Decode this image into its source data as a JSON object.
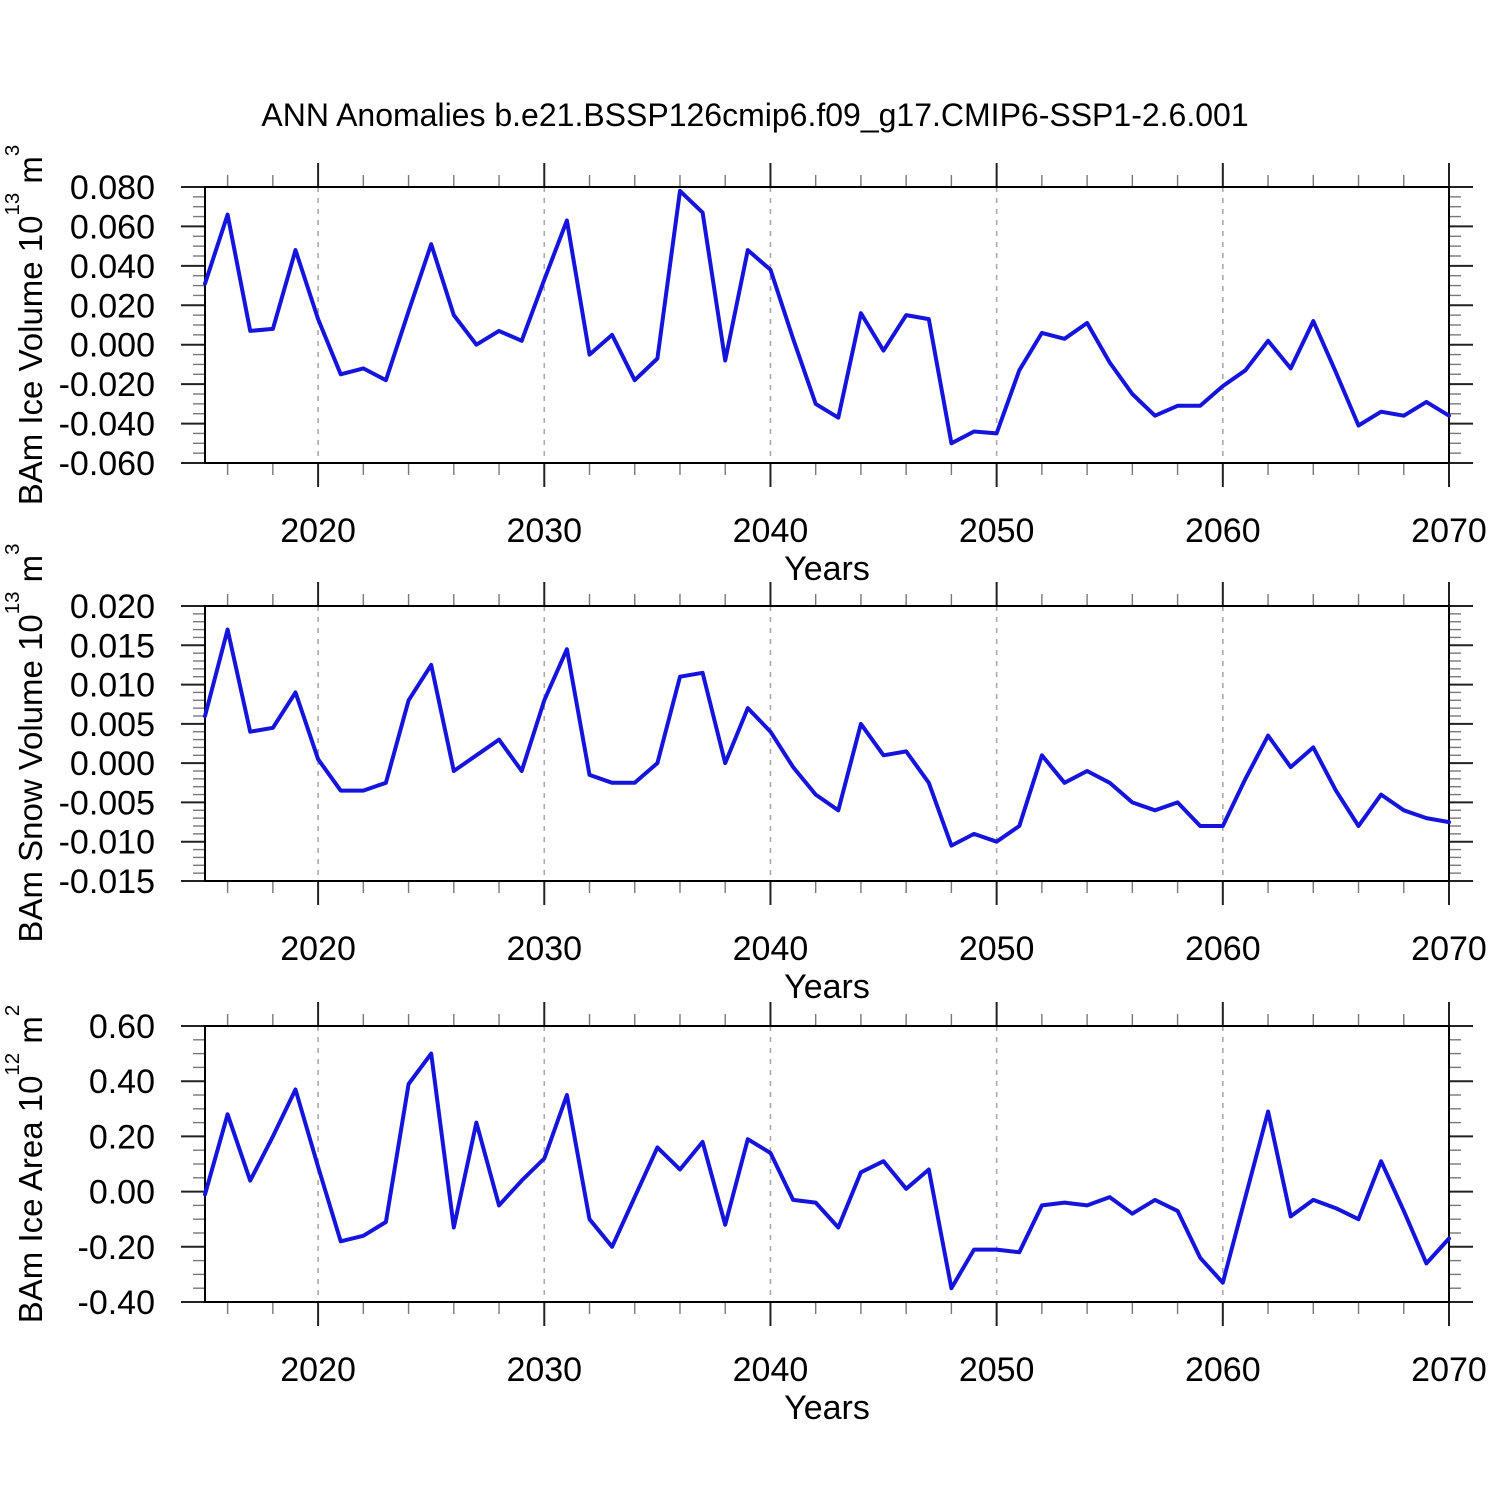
{
  "title": "ANN Anomalies b.e21.BSSP126cmip6.f09_g17.CMIP6-SSP1-2.6.001",
  "xlabel": "Years",
  "line_color": "#1414dd",
  "grid_color": "#aaaaaa",
  "years": [
    2015,
    2016,
    2017,
    2018,
    2019,
    2020,
    2021,
    2022,
    2023,
    2024,
    2025,
    2026,
    2027,
    2028,
    2029,
    2030,
    2031,
    2032,
    2033,
    2034,
    2035,
    2036,
    2037,
    2038,
    2039,
    2040,
    2041,
    2042,
    2043,
    2044,
    2045,
    2046,
    2047,
    2048,
    2049,
    2050,
    2051,
    2052,
    2053,
    2054,
    2055,
    2056,
    2057,
    2058,
    2059,
    2060,
    2061,
    2062,
    2063,
    2064,
    2065,
    2066,
    2067,
    2068,
    2069,
    2070
  ],
  "x_tick_labels": [
    "2020",
    "2030",
    "2040",
    "2050",
    "2060",
    "2070"
  ],
  "x_minor_step": 2,
  "chart_data": [
    {
      "type": "line",
      "name": "bam-ice-volume",
      "ylabel_text": "BAm Ice Volume 10^13 m^3",
      "ylabel": {
        "prefix": "BAm Ice Volume 10",
        "exp": "13",
        "unit": " m",
        "unit_exp": "3"
      },
      "xlim": [
        2015,
        2070
      ],
      "ylim": [
        -0.06,
        0.08
      ],
      "ytick_step": 0.02,
      "ytick_minor_step": 0.005,
      "ytick_decimals": 3,
      "grid": "vertical-dashed-decades",
      "legend": "none",
      "values": [
        0.031,
        0.066,
        0.007,
        0.008,
        0.048,
        0.013,
        -0.015,
        -0.012,
        -0.018,
        0.017,
        0.051,
        0.015,
        0.0,
        0.007,
        0.002,
        0.033,
        0.063,
        -0.005,
        0.005,
        -0.018,
        -0.007,
        0.078,
        0.067,
        -0.008,
        0.048,
        0.038,
        0.003,
        -0.03,
        -0.037,
        0.016,
        -0.003,
        0.015,
        0.013,
        -0.05,
        -0.044,
        -0.045,
        -0.013,
        0.006,
        0.003,
        0.011,
        -0.009,
        -0.025,
        -0.036,
        -0.031,
        -0.031,
        -0.021,
        -0.013,
        0.002,
        -0.012,
        0.012,
        -0.014,
        -0.041,
        -0.034,
        -0.036,
        -0.029,
        -0.036
      ]
    },
    {
      "type": "line",
      "name": "bam-snow-volume",
      "ylabel_text": "BAm Snow Volume 10^13 m^3",
      "ylabel": {
        "prefix": "BAm Snow Volume 10",
        "exp": "13",
        "unit": " m",
        "unit_exp": "3"
      },
      "xlim": [
        2015,
        2070
      ],
      "ylim": [
        -0.015,
        0.02
      ],
      "ytick_step": 0.005,
      "ytick_minor_step": 0.001,
      "ytick_decimals": 3,
      "grid": "vertical-dashed-decades",
      "legend": "none",
      "values": [
        0.006,
        0.017,
        0.004,
        0.0045,
        0.009,
        0.0005,
        -0.0035,
        -0.0035,
        -0.0025,
        0.008,
        0.0125,
        -0.001,
        0.001,
        0.003,
        -0.001,
        0.008,
        0.0145,
        -0.0015,
        -0.0025,
        -0.0025,
        0.0,
        0.011,
        0.0115,
        0.0,
        0.007,
        0.004,
        -0.0005,
        -0.004,
        -0.006,
        0.005,
        0.001,
        0.0015,
        -0.0025,
        -0.0105,
        -0.009,
        -0.01,
        -0.008,
        0.001,
        -0.0025,
        -0.001,
        -0.0025,
        -0.005,
        -0.006,
        -0.005,
        -0.008,
        -0.008,
        -0.002,
        0.0035,
        -0.0005,
        0.002,
        -0.0035,
        -0.008,
        -0.004,
        -0.006,
        -0.007,
        -0.0075
      ]
    },
    {
      "type": "line",
      "name": "bam-ice-area",
      "ylabel_text": "BAm Ice Area 10^12 m^2",
      "ylabel": {
        "prefix": "BAm Ice Area 10",
        "exp": "12",
        "unit": " m",
        "unit_exp": "2"
      },
      "xlim": [
        2015,
        2070
      ],
      "ylim": [
        -0.4,
        0.6
      ],
      "ytick_step": 0.2,
      "ytick_minor_step": 0.05,
      "ytick_decimals": 2,
      "grid": "vertical-dashed-decades",
      "legend": "none",
      "values": [
        -0.01,
        0.28,
        0.04,
        0.2,
        0.37,
        0.09,
        -0.18,
        -0.16,
        -0.11,
        0.39,
        0.5,
        -0.13,
        0.25,
        -0.05,
        0.04,
        0.12,
        0.35,
        -0.1,
        -0.2,
        -0.02,
        0.16,
        0.08,
        0.18,
        -0.12,
        0.19,
        0.14,
        -0.03,
        -0.04,
        -0.13,
        0.07,
        0.11,
        0.01,
        0.08,
        -0.35,
        -0.21,
        -0.21,
        -0.22,
        -0.05,
        -0.04,
        -0.05,
        -0.02,
        -0.08,
        -0.03,
        -0.07,
        -0.24,
        -0.33,
        -0.02,
        0.29,
        -0.09,
        -0.03,
        -0.06,
        -0.1,
        0.11,
        -0.07,
        -0.26,
        -0.17
      ]
    }
  ]
}
